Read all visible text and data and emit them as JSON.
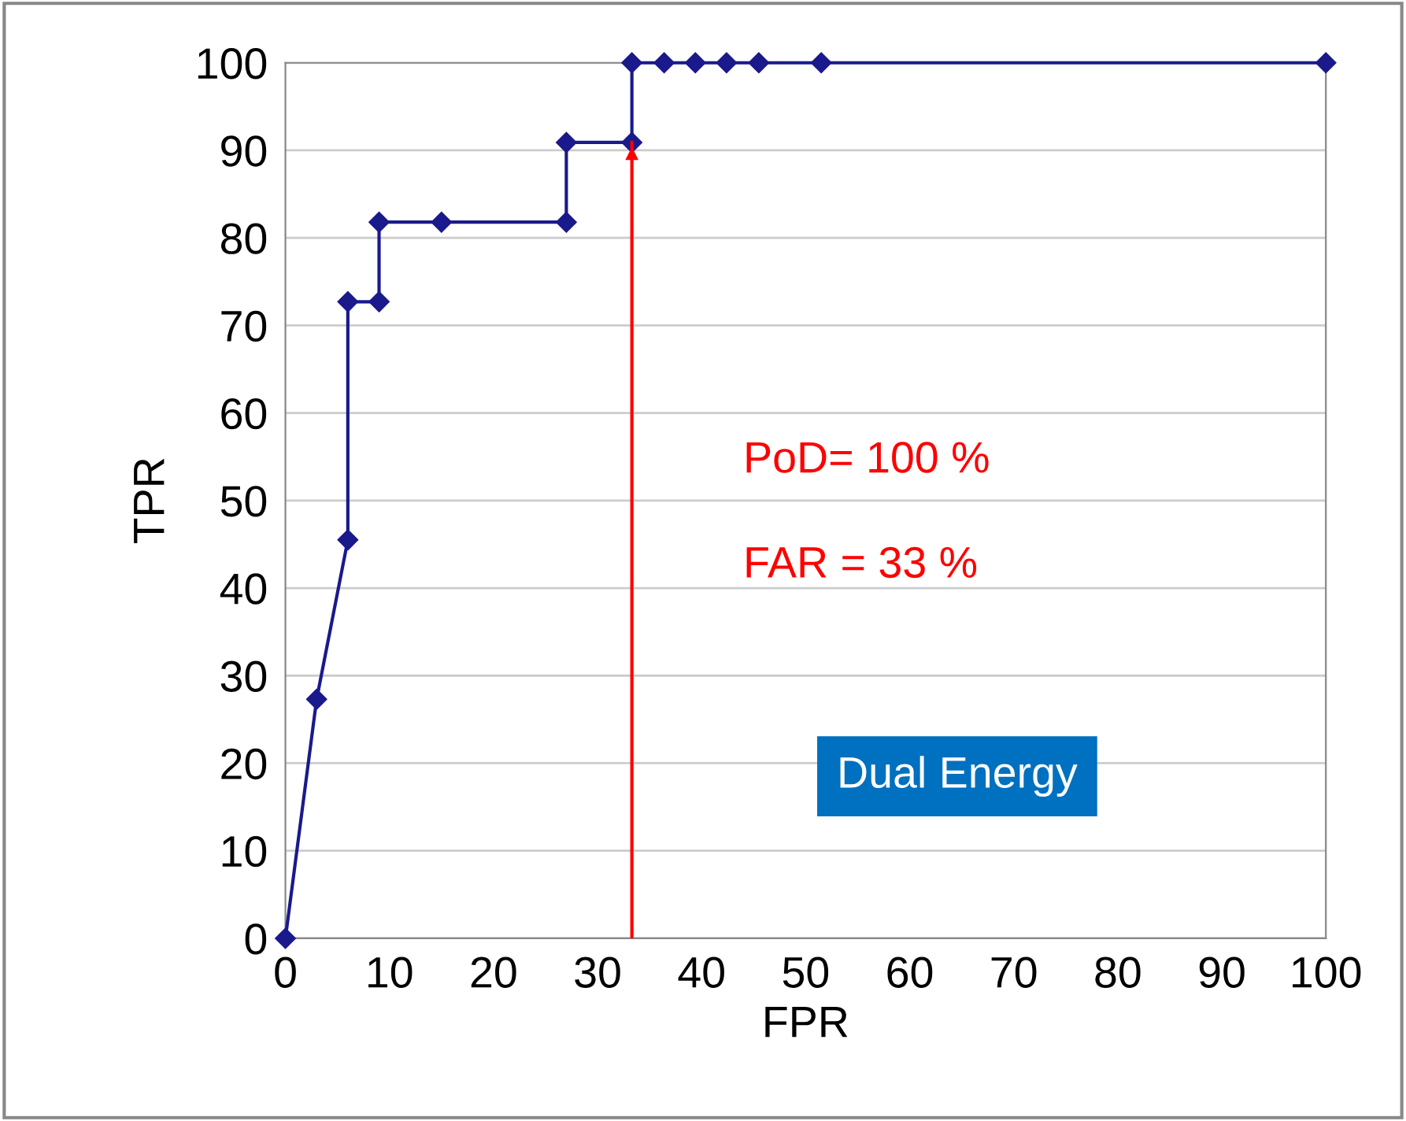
{
  "chart_data": {
    "type": "line",
    "xlabel": "FPR",
    "ylabel": "TPR",
    "series": [
      {
        "color": "#1a1a8c",
        "x": [
          0,
          3,
          6,
          6,
          9,
          9,
          15,
          27,
          27,
          33.3,
          33.3,
          36.4,
          39.4,
          42.4,
          45.5,
          51.5,
          100
        ],
        "values": [
          0,
          27.3,
          45.5,
          72.7,
          72.7,
          81.8,
          81.8,
          81.8,
          90.9,
          90.9,
          100,
          100,
          100,
          100,
          100,
          100,
          100
        ]
      }
    ],
    "xlim": [
      0,
      100
    ],
    "ylim": [
      0,
      100
    ],
    "xticks": [
      0,
      10,
      20,
      30,
      40,
      50,
      60,
      70,
      80,
      90,
      100
    ],
    "yticks": [
      0,
      10,
      20,
      30,
      40,
      50,
      60,
      70,
      80,
      90,
      100
    ],
    "grid": "y",
    "marker": "diamond",
    "line_style": "solid",
    "ref_lines": [
      {
        "axis": "x",
        "value": 33.3,
        "color": "#ff0000"
      }
    ],
    "annotations": [
      "PoD= 100 %",
      "FAR = 33 %",
      "Dual Energy"
    ]
  }
}
